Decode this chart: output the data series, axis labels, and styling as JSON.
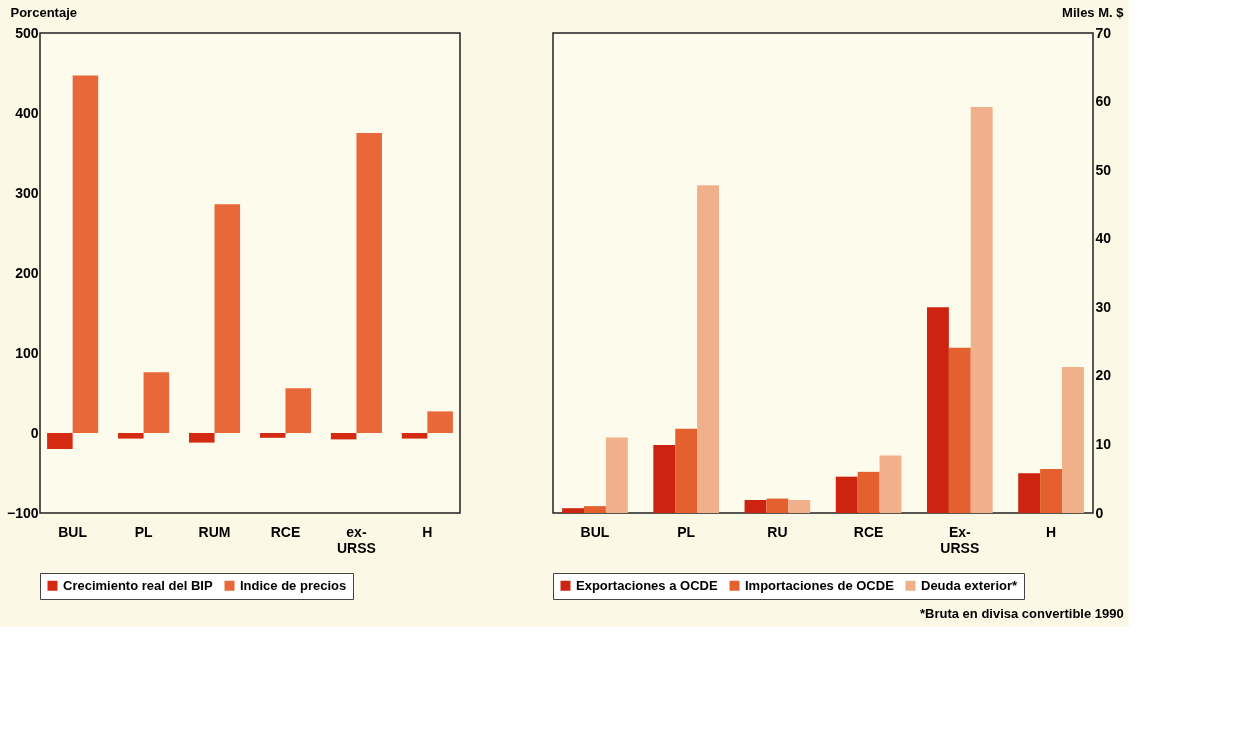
{
  "chart_data": [
    {
      "type": "bar",
      "ylabel": "Porcentaje",
      "categories": [
        "BUL",
        "PL",
        "RUM",
        "RCE",
        "ex-\nURSS",
        "H"
      ],
      "series": [
        {
          "name": "Crecimiento real del BIP",
          "color": "#d42a12",
          "values": [
            -20,
            -7,
            -12,
            -6,
            -8,
            -7
          ]
        },
        {
          "name": "Indice de precios",
          "color": "#e8683a",
          "values": [
            447,
            76,
            286,
            56,
            375,
            27
          ]
        }
      ],
      "ylim": [
        -100,
        500
      ],
      "yticks": [
        -100,
        0,
        100,
        200,
        300,
        400,
        500
      ],
      "legend": "bottom",
      "grid": false
    },
    {
      "type": "bar",
      "y2label": "Miles M. $",
      "categories": [
        "BUL",
        "PL",
        "RU",
        "RCE",
        "Ex-\nURSS",
        "H"
      ],
      "series": [
        {
          "name": "Exportaciones a OCDE",
          "color": "#cc2410",
          "values": [
            0.7,
            9.9,
            1.9,
            5.3,
            30,
            5.8
          ],
          "axis": "y2"
        },
        {
          "name": "Importaciones de OCDE",
          "color": "#e4602e",
          "values": [
            1,
            12.3,
            2.1,
            6,
            24.1,
            6.4
          ],
          "axis": "y2"
        },
        {
          "name": "Deuda exterior*",
          "color": "#f0b08a",
          "values": [
            11,
            47.8,
            1.9,
            8.4,
            59.2,
            21.3
          ],
          "axis": "y2"
        }
      ],
      "y2lim": [
        0,
        70
      ],
      "y2ticks": [
        0,
        10,
        20,
        30,
        40,
        50,
        60,
        70
      ],
      "legend": "bottom",
      "grid": false,
      "annotations": [
        "*Bruta en divisa convertible 1990"
      ]
    }
  ]
}
